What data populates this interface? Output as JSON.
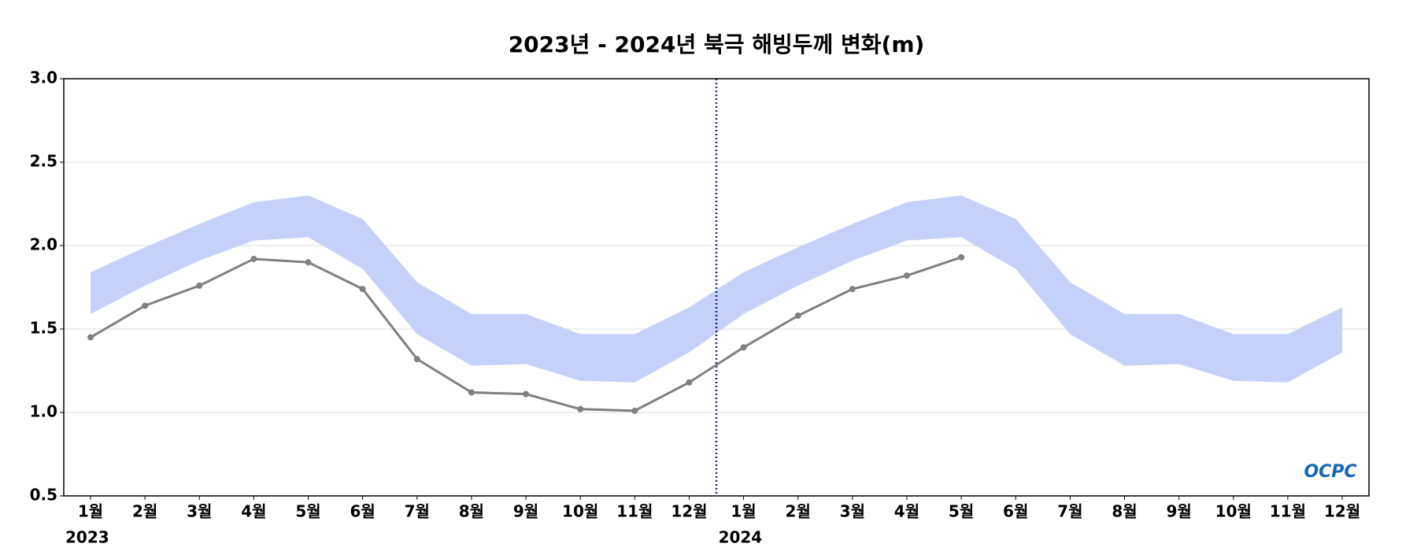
{
  "chart_data": {
    "type": "line",
    "title": "2023년 - 2024년 북극 해빙두께 변화(m)",
    "categories": [
      "1월",
      "2월",
      "3월",
      "4월",
      "5월",
      "6월",
      "7월",
      "8월",
      "9월",
      "10월",
      "11월",
      "12월",
      "1월",
      "2월",
      "3월",
      "4월",
      "5월",
      "6월",
      "7월",
      "8월",
      "9월",
      "10월",
      "11월",
      "12월"
    ],
    "category_years": [
      "2023",
      null,
      null,
      null,
      null,
      null,
      null,
      null,
      null,
      null,
      null,
      null,
      "2024",
      null,
      null,
      null,
      null,
      null,
      null,
      null,
      null,
      null,
      null,
      null
    ],
    "series": [
      {
        "color": "#808080",
        "values": [
          1.45,
          1.64,
          1.76,
          1.92,
          1.9,
          1.74,
          1.32,
          1.12,
          1.11,
          1.02,
          1.01,
          1.18,
          1.39,
          1.58,
          1.74,
          1.82,
          1.93,
          null,
          null,
          null,
          null,
          null,
          null,
          null
        ]
      }
    ],
    "band": {
      "color": "#c6d1fb",
      "upper": [
        1.84,
        1.99,
        2.13,
        2.26,
        2.3,
        2.16,
        1.78,
        1.59,
        1.59,
        1.47,
        1.47,
        1.63,
        1.84,
        1.99,
        2.13,
        2.26,
        2.3,
        2.16,
        1.78,
        1.59,
        1.59,
        1.47,
        1.47,
        1.63
      ],
      "lower": [
        1.59,
        1.76,
        1.91,
        2.03,
        2.05,
        1.86,
        1.47,
        1.28,
        1.29,
        1.19,
        1.18,
        1.36,
        1.59,
        1.76,
        1.91,
        2.03,
        2.05,
        1.86,
        1.47,
        1.28,
        1.29,
        1.19,
        1.18,
        1.36
      ]
    },
    "ylim": [
      0.5,
      3.0
    ],
    "yticks": [
      0.5,
      {
        "value": 1,
        "label": "1.0"
      },
      1.5,
      {
        "value": 2,
        "label": "2.0"
      },
      2.5,
      {
        "value": 3,
        "label": "3.0"
      }
    ],
    "grid": true,
    "logo": "OCPC"
  }
}
